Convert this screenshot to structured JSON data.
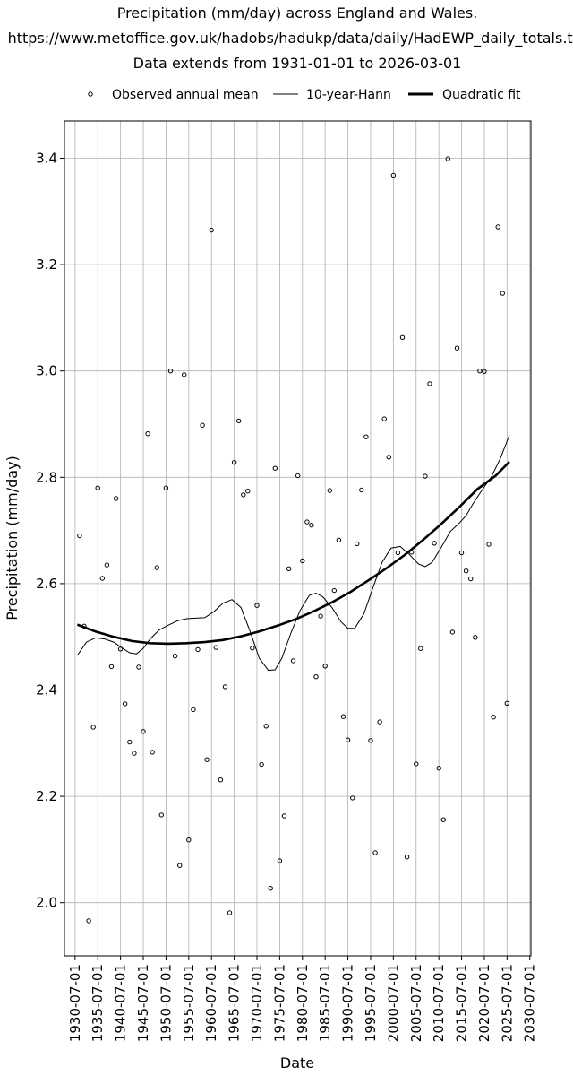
{
  "chart_data": {
    "type": "scatter",
    "title_lines": [
      "Precipitation (mm/day) across England and Wales.",
      "https://www.metoffice.gov.uk/hadobs/hadukp/data/daily/HadEWP_daily_totals.txt",
      "Data extends from 1931-01-01 to 2026-03-01"
    ],
    "xlabel": "Date",
    "ylabel": "Precipitation (mm/day)",
    "x_axis": {
      "type": "date",
      "range": [
        "1928-03-01",
        "2030-10-01"
      ],
      "tick_labels": [
        "1930-07-01",
        "1935-07-01",
        "1940-07-01",
        "1945-07-01",
        "1950-07-01",
        "1955-07-01",
        "1960-07-01",
        "1965-07-01",
        "1970-07-01",
        "1975-07-01",
        "1980-07-01",
        "1985-07-01",
        "1990-07-01",
        "1995-07-01",
        "2000-07-01",
        "2005-07-01",
        "2010-07-01",
        "2015-07-01",
        "2020-07-01",
        "2025-07-01",
        "2030-07-01"
      ]
    },
    "y_axis": {
      "range": [
        1.9,
        3.47
      ],
      "tick_labels": [
        "2.0",
        "2.2",
        "2.4",
        "2.6",
        "2.8",
        "3.0",
        "3.2",
        "3.4"
      ]
    },
    "grid": true,
    "legend": {
      "placement": "top-center",
      "entries": [
        {
          "label": "Observed annual mean",
          "style": "open-circle"
        },
        {
          "label": "10-year-Hann",
          "style": "thin-line"
        },
        {
          "label": "Quadratic fit",
          "style": "thick-line"
        }
      ]
    },
    "colors": {
      "marks": "#000000",
      "grid": "#b0b0b0",
      "background": "#ffffff"
    },
    "series": [
      {
        "name": "Observed annual mean",
        "type": "scatter",
        "points": [
          [
            "1931-07-01",
            2.69
          ],
          [
            "1932-07-01",
            2.52
          ],
          [
            "1933-07-01",
            1.966
          ],
          [
            "1934-07-01",
            2.33
          ],
          [
            "1935-07-01",
            2.78
          ],
          [
            "1936-07-01",
            2.61
          ],
          [
            "1937-07-01",
            2.635
          ],
          [
            "1938-07-01",
            2.444
          ],
          [
            "1939-07-01",
            2.76
          ],
          [
            "1940-07-01",
            2.477
          ],
          [
            "1941-07-01",
            2.374
          ],
          [
            "1942-07-01",
            2.302
          ],
          [
            "1943-07-01",
            2.281
          ],
          [
            "1944-07-01",
            2.443
          ],
          [
            "1945-07-01",
            2.322
          ],
          [
            "1946-07-01",
            2.882
          ],
          [
            "1947-07-01",
            2.283
          ],
          [
            "1948-07-01",
            2.63
          ],
          [
            "1949-07-01",
            2.165
          ],
          [
            "1950-07-01",
            2.78
          ],
          [
            "1951-07-01",
            3.0
          ],
          [
            "1952-07-01",
            2.464
          ],
          [
            "1953-07-01",
            2.07
          ],
          [
            "1954-07-01",
            2.993
          ],
          [
            "1955-07-01",
            2.118
          ],
          [
            "1956-07-01",
            2.363
          ],
          [
            "1957-07-01",
            2.476
          ],
          [
            "1958-07-01",
            2.898
          ],
          [
            "1959-07-01",
            2.269
          ],
          [
            "1960-07-01",
            3.265
          ],
          [
            "1961-07-01",
            2.48
          ],
          [
            "1962-07-01",
            2.231
          ],
          [
            "1963-07-01",
            2.406
          ],
          [
            "1964-07-01",
            1.981
          ],
          [
            "1965-07-01",
            2.828
          ],
          [
            "1966-07-01",
            2.906
          ],
          [
            "1967-07-01",
            2.767
          ],
          [
            "1968-07-01",
            2.774
          ],
          [
            "1969-07-01",
            2.479
          ],
          [
            "1970-07-01",
            2.559
          ],
          [
            "1971-07-01",
            2.26
          ],
          [
            "1972-07-01",
            2.332
          ],
          [
            "1973-07-01",
            2.027
          ],
          [
            "1974-07-01",
            2.817
          ],
          [
            "1975-07-01",
            2.079
          ],
          [
            "1976-07-01",
            2.163
          ],
          [
            "1977-07-01",
            2.628
          ],
          [
            "1978-07-01",
            2.455
          ],
          [
            "1979-07-01",
            2.803
          ],
          [
            "1980-07-01",
            2.643
          ],
          [
            "1981-07-01",
            2.716
          ],
          [
            "1982-07-01",
            2.71
          ],
          [
            "1983-07-01",
            2.425
          ],
          [
            "1984-07-01",
            2.539
          ],
          [
            "1985-07-01",
            2.445
          ],
          [
            "1986-07-01",
            2.775
          ],
          [
            "1987-07-01",
            2.587
          ],
          [
            "1988-07-01",
            2.682
          ],
          [
            "1989-07-01",
            2.35
          ],
          [
            "1990-07-01",
            2.306
          ],
          [
            "1991-07-01",
            2.197
          ],
          [
            "1992-07-01",
            2.675
          ],
          [
            "1993-07-01",
            2.776
          ],
          [
            "1994-07-01",
            2.876
          ],
          [
            "1995-07-01",
            2.305
          ],
          [
            "1996-07-01",
            2.094
          ],
          [
            "1997-07-01",
            2.34
          ],
          [
            "1998-07-01",
            2.91
          ],
          [
            "1999-07-01",
            2.838
          ],
          [
            "2000-07-01",
            3.368
          ],
          [
            "2001-07-01",
            2.658
          ],
          [
            "2002-07-01",
            3.063
          ],
          [
            "2003-07-01",
            2.086
          ],
          [
            "2004-07-01",
            2.659
          ],
          [
            "2005-07-01",
            2.261
          ],
          [
            "2006-07-01",
            2.478
          ],
          [
            "2007-07-01",
            2.802
          ],
          [
            "2008-07-01",
            2.976
          ],
          [
            "2009-07-01",
            2.676
          ],
          [
            "2010-07-01",
            2.253
          ],
          [
            "2011-07-01",
            2.156
          ],
          [
            "2012-07-01",
            3.399
          ],
          [
            "2013-07-01",
            2.509
          ],
          [
            "2014-07-01",
            3.043
          ],
          [
            "2015-07-01",
            2.658
          ],
          [
            "2016-07-01",
            2.624
          ],
          [
            "2017-07-01",
            2.609
          ],
          [
            "2018-07-01",
            2.499
          ],
          [
            "2019-07-01",
            3.0
          ],
          [
            "2020-07-01",
            2.999
          ],
          [
            "2021-07-01",
            2.674
          ],
          [
            "2022-07-01",
            2.349
          ],
          [
            "2023-07-01",
            3.271
          ],
          [
            "2024-07-01",
            3.146
          ],
          [
            "2025-07-01",
            2.375
          ]
        ]
      },
      {
        "name": "10-year-Hann",
        "type": "line",
        "points": [
          [
            "1931-01-01",
            2.465
          ],
          [
            "1933-01-01",
            2.49
          ],
          [
            "1935-01-01",
            2.498
          ],
          [
            "1937-01-01",
            2.496
          ],
          [
            "1939-01-01",
            2.49
          ],
          [
            "1941-01-01",
            2.478
          ],
          [
            "1942-07-01",
            2.47
          ],
          [
            "1944-01-01",
            2.468
          ],
          [
            "1945-07-01",
            2.478
          ],
          [
            "1947-01-01",
            2.496
          ],
          [
            "1949-01-01",
            2.513
          ],
          [
            "1951-01-01",
            2.522
          ],
          [
            "1953-01-01",
            2.53
          ],
          [
            "1955-01-01",
            2.534
          ],
          [
            "1957-01-01",
            2.535
          ],
          [
            "1959-01-01",
            2.536
          ],
          [
            "1961-01-01",
            2.547
          ],
          [
            "1963-01-01",
            2.563
          ],
          [
            "1965-01-01",
            2.57
          ],
          [
            "1967-01-01",
            2.555
          ],
          [
            "1969-01-01",
            2.51
          ],
          [
            "1971-01-01",
            2.46
          ],
          [
            "1973-01-01",
            2.437
          ],
          [
            "1974-07-01",
            2.438
          ],
          [
            "1976-01-01",
            2.46
          ],
          [
            "1978-01-01",
            2.508
          ],
          [
            "1980-01-01",
            2.55
          ],
          [
            "1982-01-01",
            2.578
          ],
          [
            "1983-07-01",
            2.582
          ],
          [
            "1985-01-01",
            2.575
          ],
          [
            "1987-01-01",
            2.555
          ],
          [
            "1989-01-01",
            2.528
          ],
          [
            "1990-07-01",
            2.516
          ],
          [
            "1992-01-01",
            2.516
          ],
          [
            "1994-01-01",
            2.543
          ],
          [
            "1996-01-01",
            2.592
          ],
          [
            "1998-01-01",
            2.64
          ],
          [
            "2000-01-01",
            2.667
          ],
          [
            "2002-01-01",
            2.67
          ],
          [
            "2004-01-01",
            2.655
          ],
          [
            "2006-01-01",
            2.637
          ],
          [
            "2007-07-01",
            2.632
          ],
          [
            "2009-01-01",
            2.64
          ],
          [
            "2011-01-01",
            2.668
          ],
          [
            "2013-01-01",
            2.698
          ],
          [
            "2015-01-01",
            2.714
          ],
          [
            "2016-07-01",
            2.728
          ],
          [
            "2018-01-01",
            2.75
          ],
          [
            "2020-01-01",
            2.776
          ],
          [
            "2022-01-01",
            2.8
          ],
          [
            "2024-01-01",
            2.835
          ],
          [
            "2026-01-01",
            2.879
          ]
        ]
      },
      {
        "name": "Quadratic fit",
        "type": "line",
        "points": [
          [
            "1931-01-01",
            2.523
          ],
          [
            "1935-01-01",
            2.51
          ],
          [
            "1939-01-01",
            2.5
          ],
          [
            "1943-01-01",
            2.492
          ],
          [
            "1947-01-01",
            2.488
          ],
          [
            "1951-01-01",
            2.487
          ],
          [
            "1955-01-01",
            2.488
          ],
          [
            "1959-01-01",
            2.49
          ],
          [
            "1963-01-01",
            2.494
          ],
          [
            "1967-01-01",
            2.501
          ],
          [
            "1971-01-01",
            2.51
          ],
          [
            "1975-01-01",
            2.521
          ],
          [
            "1979-01-01",
            2.533
          ],
          [
            "1983-01-01",
            2.548
          ],
          [
            "1987-01-01",
            2.565
          ],
          [
            "1991-01-01",
            2.584
          ],
          [
            "1995-01-01",
            2.606
          ],
          [
            "1999-01-01",
            2.629
          ],
          [
            "2003-01-01",
            2.654
          ],
          [
            "2007-01-01",
            2.682
          ],
          [
            "2011-01-01",
            2.712
          ],
          [
            "2015-01-01",
            2.744
          ],
          [
            "2019-01-01",
            2.778
          ],
          [
            "2023-01-01",
            2.803
          ],
          [
            "2026-01-01",
            2.829
          ]
        ]
      }
    ]
  }
}
